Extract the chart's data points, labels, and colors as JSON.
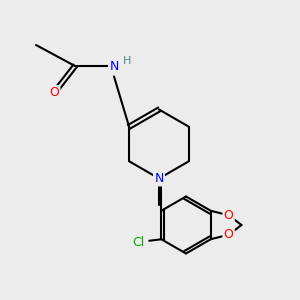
{
  "background_color": "#ececec",
  "figsize": [
    3.0,
    3.0
  ],
  "dpi": 100,
  "bond_color": "#000000",
  "bond_lw": 1.5,
  "atom_colors": {
    "O": "#ff0000",
    "N": "#0000ff",
    "Cl": "#00aa00",
    "H": "#4a8a8a",
    "C": "#000000"
  },
  "font_size": 9,
  "font_size_small": 8
}
